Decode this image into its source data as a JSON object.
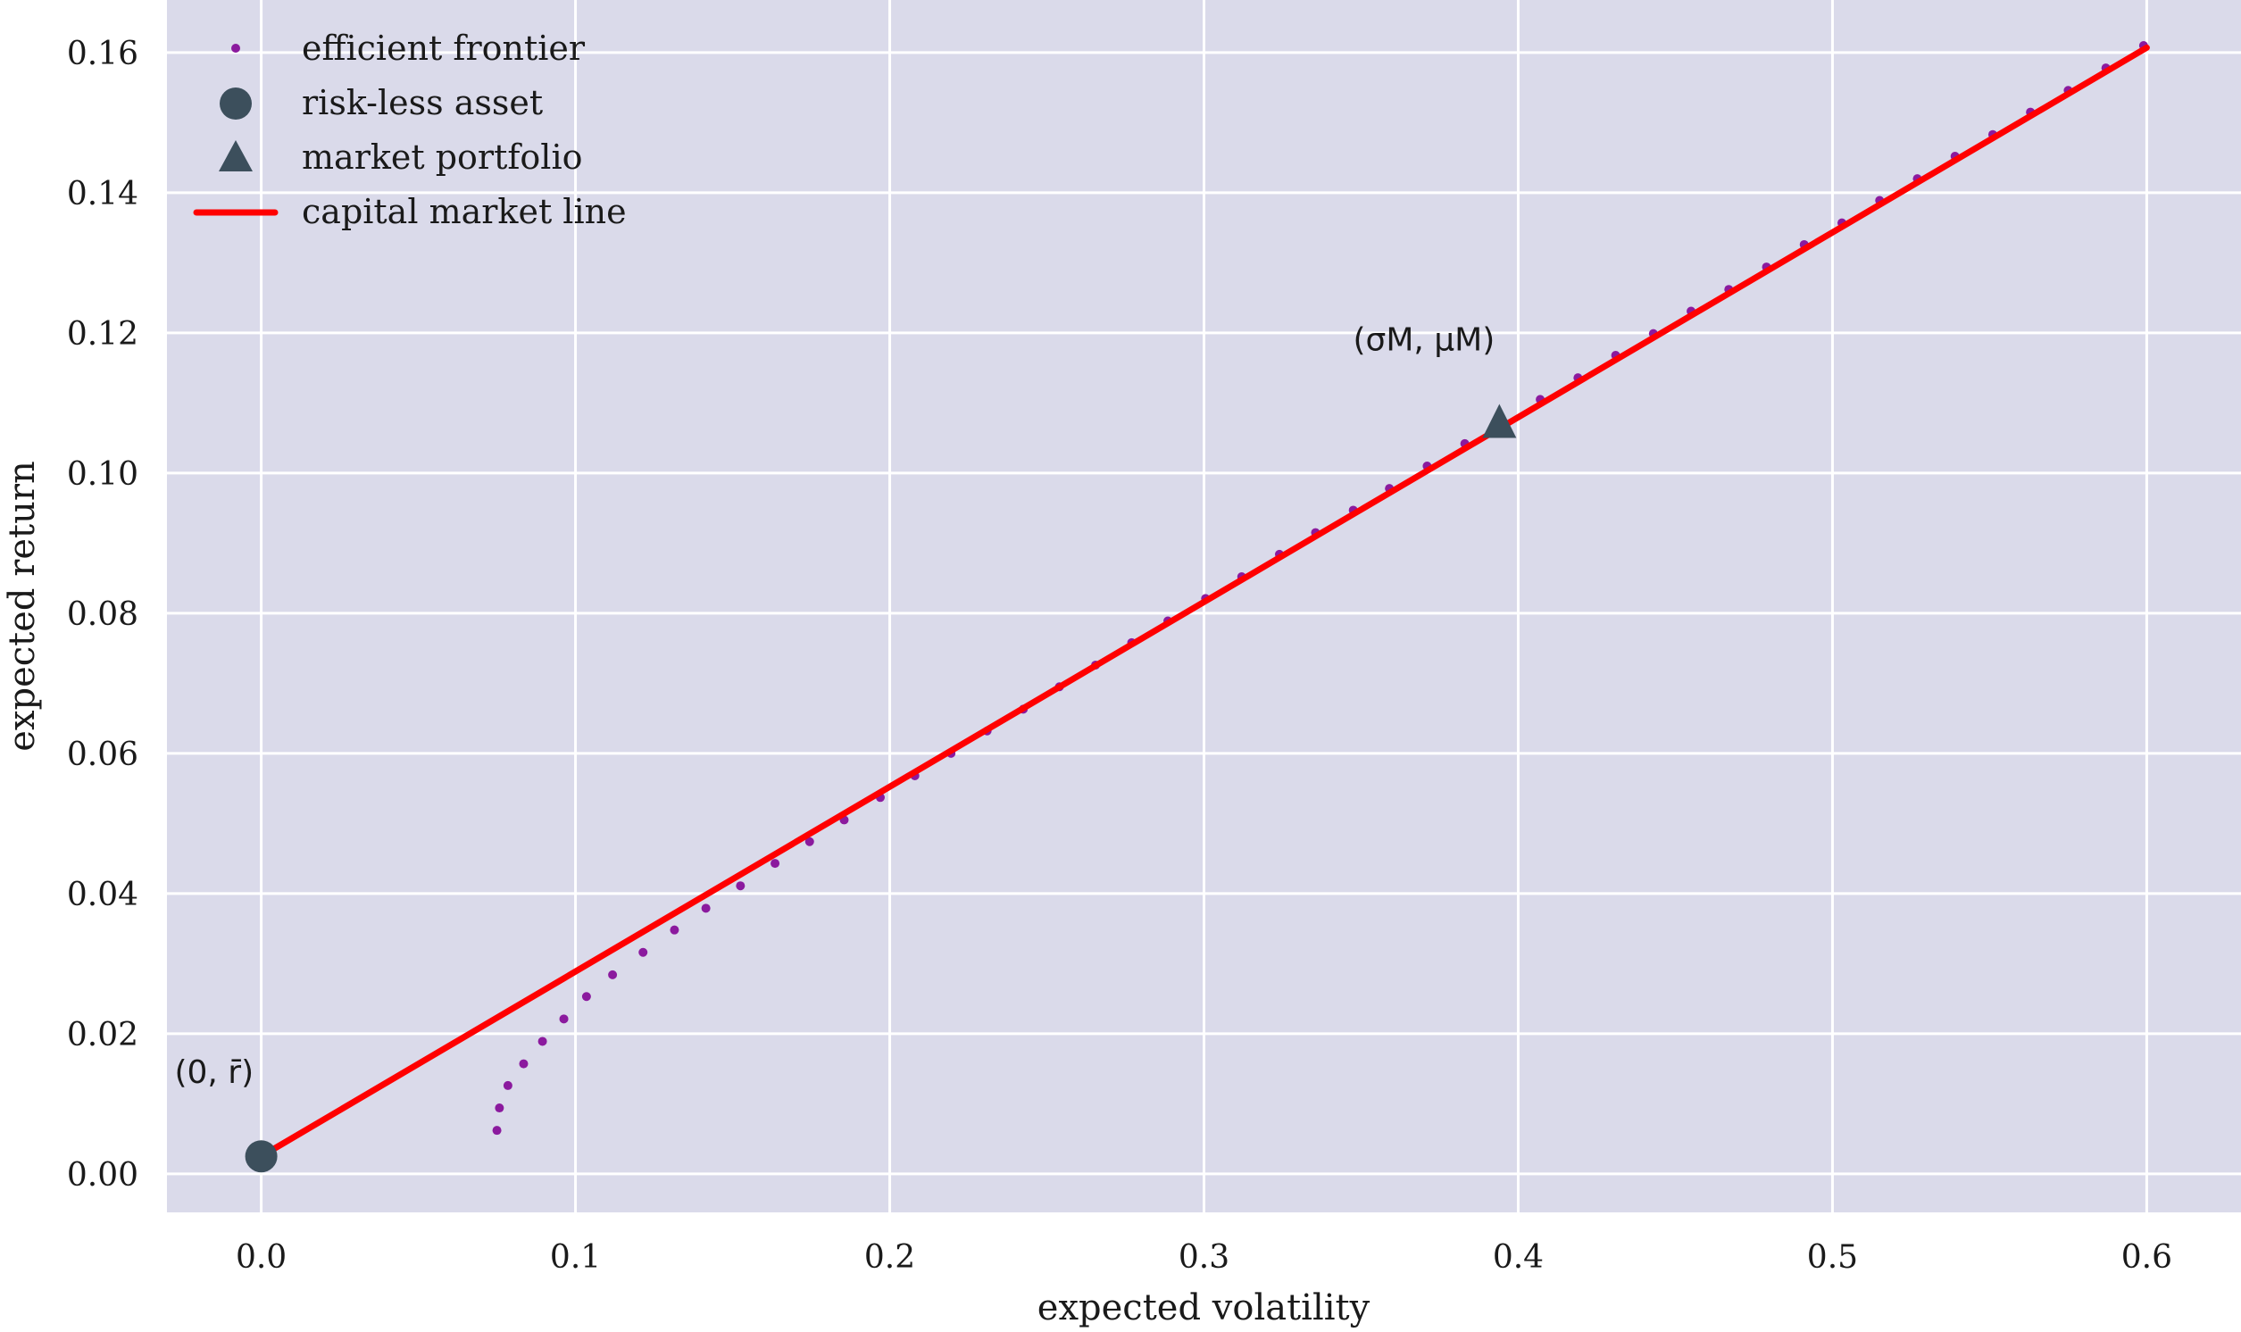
{
  "chart_data": {
    "type": "scatter",
    "xlabel": "expected volatility",
    "ylabel": "expected return",
    "xlim": [
      -0.03,
      0.63
    ],
    "ylim": [
      -0.0055,
      0.1675
    ],
    "xticks": [
      0.0,
      0.1,
      0.2,
      0.3,
      0.4,
      0.5,
      0.6
    ],
    "xtick_labels": [
      "0.0",
      "0.1",
      "0.2",
      "0.3",
      "0.4",
      "0.5",
      "0.6"
    ],
    "yticks": [
      0.0,
      0.02,
      0.04,
      0.06,
      0.08,
      0.1,
      0.12,
      0.14,
      0.16
    ],
    "ytick_labels": [
      "0.00",
      "0.02",
      "0.04",
      "0.06",
      "0.08",
      "0.10",
      "0.12",
      "0.14",
      "0.16"
    ],
    "grid": true,
    "legend_position": "top-left",
    "colors": {
      "background": "#dadaea",
      "frontier": "#8b1a9e",
      "riskless": "#3c4f5c",
      "market": "#3c4f5c",
      "cml": "#ff0000"
    },
    "series": [
      {
        "name": "efficient frontier",
        "kind": "points",
        "points": [
          [
            0.075,
            0.0062
          ],
          [
            0.0758,
            0.0094
          ],
          [
            0.0785,
            0.0126
          ],
          [
            0.0835,
            0.0157
          ],
          [
            0.0895,
            0.0189
          ],
          [
            0.0963,
            0.0221
          ],
          [
            0.1035,
            0.0253
          ],
          [
            0.1118,
            0.0284
          ],
          [
            0.1215,
            0.0316
          ],
          [
            0.1315,
            0.0348
          ],
          [
            0.1415,
            0.0379
          ],
          [
            0.1525,
            0.0411
          ],
          [
            0.1635,
            0.0443
          ],
          [
            0.1745,
            0.0474
          ],
          [
            0.1855,
            0.0505
          ],
          [
            0.197,
            0.0537
          ],
          [
            0.208,
            0.0568
          ],
          [
            0.2195,
            0.06
          ],
          [
            0.231,
            0.0632
          ],
          [
            0.2425,
            0.0663
          ],
          [
            0.254,
            0.0695
          ],
          [
            0.2655,
            0.0726
          ],
          [
            0.277,
            0.0758
          ],
          [
            0.2885,
            0.0789
          ],
          [
            0.3005,
            0.0821
          ],
          [
            0.312,
            0.0852
          ],
          [
            0.324,
            0.0884
          ],
          [
            0.3355,
            0.0915
          ],
          [
            0.3475,
            0.0947
          ],
          [
            0.359,
            0.0978
          ],
          [
            0.371,
            0.101
          ],
          [
            0.383,
            0.1042
          ],
          [
            0.395,
            0.1073
          ],
          [
            0.407,
            0.1105
          ],
          [
            0.419,
            0.1136
          ],
          [
            0.431,
            0.1168
          ],
          [
            0.443,
            0.1199
          ],
          [
            0.455,
            0.1231
          ],
          [
            0.467,
            0.1262
          ],
          [
            0.479,
            0.1294
          ],
          [
            0.491,
            0.1326
          ],
          [
            0.503,
            0.1357
          ],
          [
            0.515,
            0.1389
          ],
          [
            0.527,
            0.142
          ],
          [
            0.539,
            0.1452
          ],
          [
            0.551,
            0.1483
          ],
          [
            0.563,
            0.1515
          ],
          [
            0.575,
            0.1546
          ],
          [
            0.587,
            0.1578
          ],
          [
            0.599,
            0.161
          ]
        ]
      },
      {
        "name": "risk-less asset",
        "kind": "circle",
        "points": [
          [
            0.0,
            0.0025
          ]
        ]
      },
      {
        "name": "market portfolio",
        "kind": "triangle",
        "points": [
          [
            0.394,
            0.1068
          ]
        ]
      },
      {
        "name": "capital market line",
        "kind": "line",
        "points": [
          [
            0.0,
            0.0025
          ],
          [
            0.6,
            0.1607
          ]
        ]
      }
    ],
    "annotations": [
      {
        "text": "(0, r̄)",
        "x": -0.015,
        "y": 0.013
      },
      {
        "text": "(σM, μM)",
        "x": 0.37,
        "y": 0.1175
      }
    ]
  }
}
